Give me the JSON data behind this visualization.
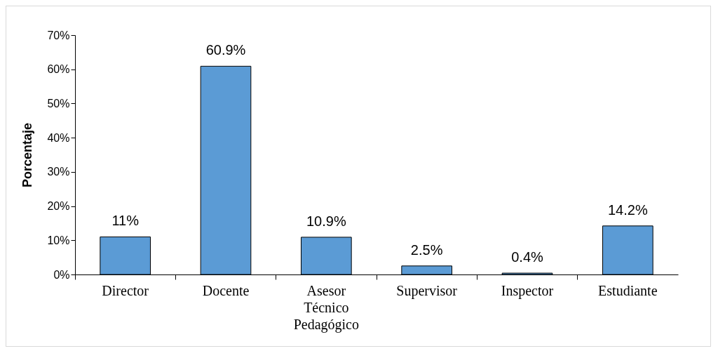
{
  "chart_data": {
    "type": "bar",
    "ylabel": "Porcentaje",
    "categories": [
      "Director",
      "Docente",
      "Asesor Técnico Pedagógico",
      "Supervisor",
      "Inspector",
      "Estudiante"
    ],
    "values": [
      11,
      60.9,
      10.9,
      2.5,
      0.4,
      14.2
    ],
    "value_labels": [
      "11%",
      "60.9%",
      "10.9%",
      "2.5%",
      "0.4%",
      "14.2%"
    ],
    "color": "#5b9bd5",
    "ylim": [
      0,
      70
    ],
    "yticks": [
      {
        "value": 0,
        "label": "0%"
      },
      {
        "value": 10,
        "label": "10%"
      },
      {
        "value": 20,
        "label": "20%"
      },
      {
        "value": 30,
        "label": "30%"
      },
      {
        "value": 40,
        "label": "40%"
      },
      {
        "value": 50,
        "label": "50%"
      },
      {
        "value": 60,
        "label": "60%"
      },
      {
        "value": 70,
        "label": "70%"
      }
    ],
    "grid": false
  }
}
